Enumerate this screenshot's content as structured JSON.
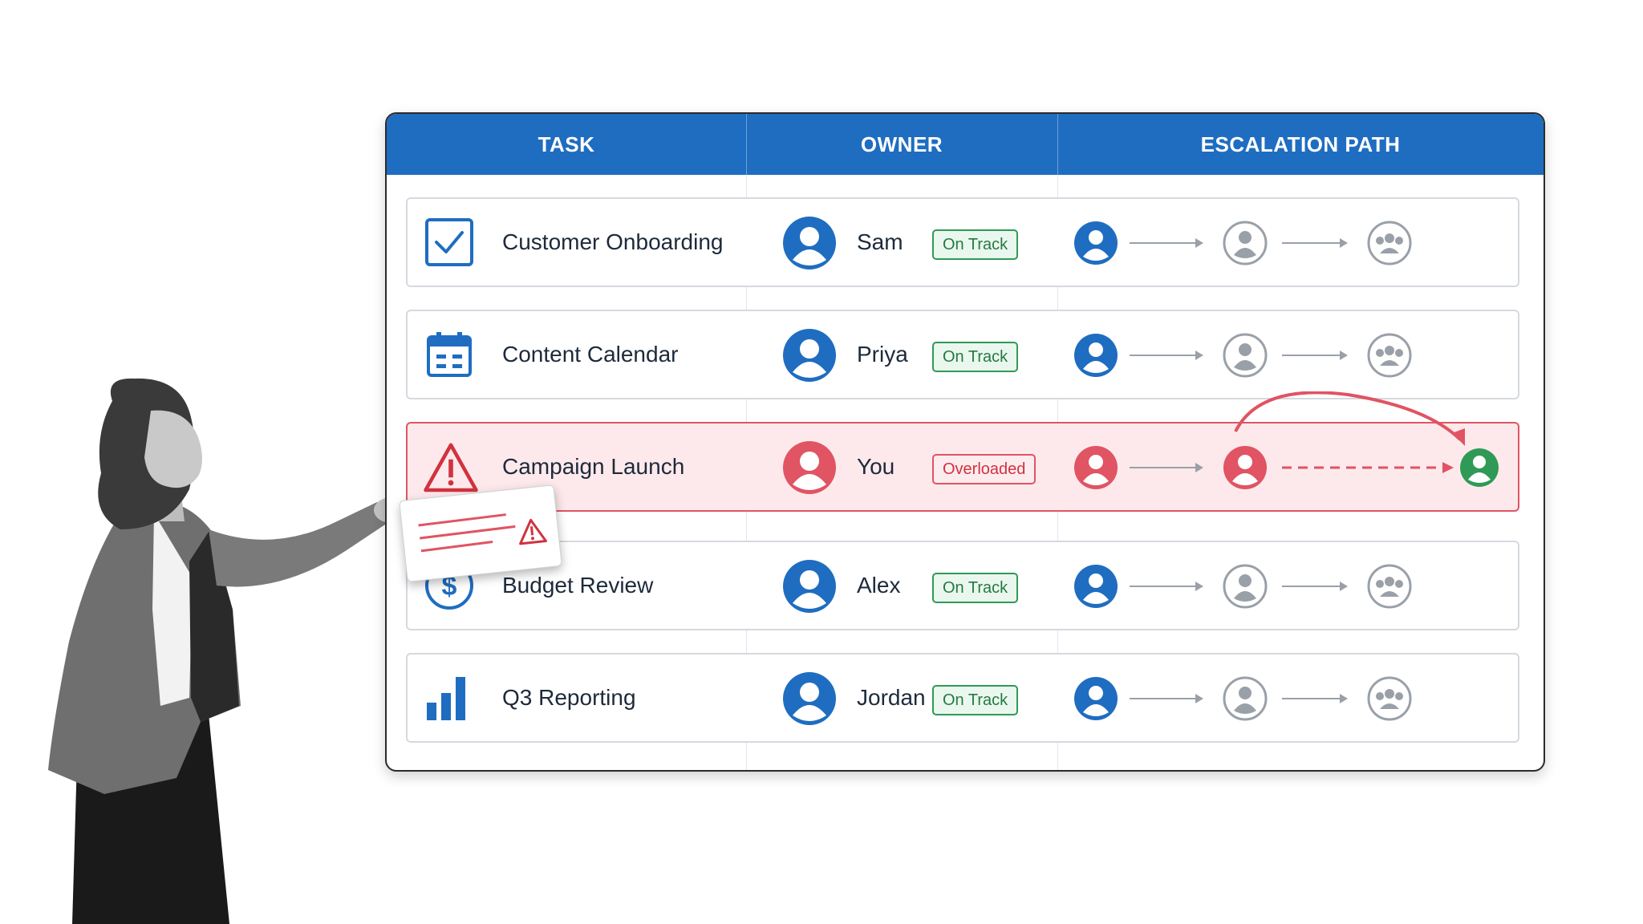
{
  "header": {
    "task": "TASK",
    "owner": "OWNER",
    "escalation": "ESCALATION PATH"
  },
  "rows": [
    {
      "task": "Customer Onboarding",
      "icon": "checkbox-icon",
      "owner": "Sam",
      "status": "On Track"
    },
    {
      "task": "Content Calendar",
      "icon": "calendar-icon",
      "owner": "Priya",
      "status": "On Track"
    },
    {
      "task": "Campaign Launch",
      "icon": "warning-icon",
      "owner": "You",
      "status": "Overloaded"
    },
    {
      "task": "Budget Review",
      "icon": "dollar-icon",
      "owner": "Alex",
      "status": "On Track"
    },
    {
      "task": "Q3 Reporting",
      "icon": "bar-chart-icon",
      "owner": "Jordan",
      "status": "On Track"
    }
  ],
  "colors": {
    "header": "#1f6dc0",
    "primary_blue": "#1f6dc0",
    "alert_red": "#e05463",
    "success_green": "#2f9a55",
    "neutral_gray": "#9aa0a8"
  }
}
